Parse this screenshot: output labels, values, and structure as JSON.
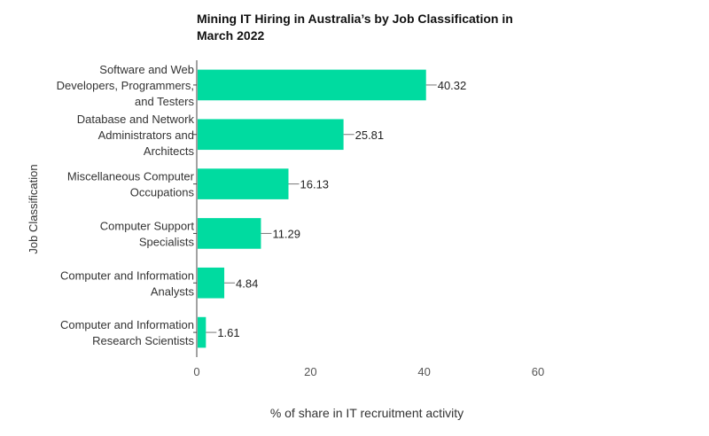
{
  "chart_data": {
    "type": "bar",
    "orientation": "horizontal",
    "title_lines": [
      "Mining IT Hiring in Australia’s by Job Classification in",
      "March 2022"
    ],
    "xlabel": "% of share in IT recruitment activity",
    "ylabel": "Job Classification",
    "categories": [
      [
        "Software and Web",
        "Developers, Programmers,",
        "and Testers"
      ],
      [
        "Database and Network",
        "Administrators and",
        "Architects"
      ],
      [
        "Miscellaneous Computer",
        "Occupations"
      ],
      [
        "Computer Support",
        "Specialists"
      ],
      [
        "Computer and Information",
        "Analysts"
      ],
      [
        "Computer and Information",
        "Research Scientists"
      ]
    ],
    "values": [
      40.32,
      25.81,
      16.13,
      11.29,
      4.84,
      1.61
    ],
    "value_labels": [
      "40.32",
      "25.81",
      "16.13",
      "11.29",
      "4.84",
      "1.61"
    ],
    "xlim": [
      0,
      60
    ],
    "xticks": [
      0,
      20,
      40,
      60
    ],
    "xtick_labels": [
      "0",
      "20",
      "40",
      "60"
    ],
    "grid": false,
    "bar_color": "#00dba0"
  }
}
